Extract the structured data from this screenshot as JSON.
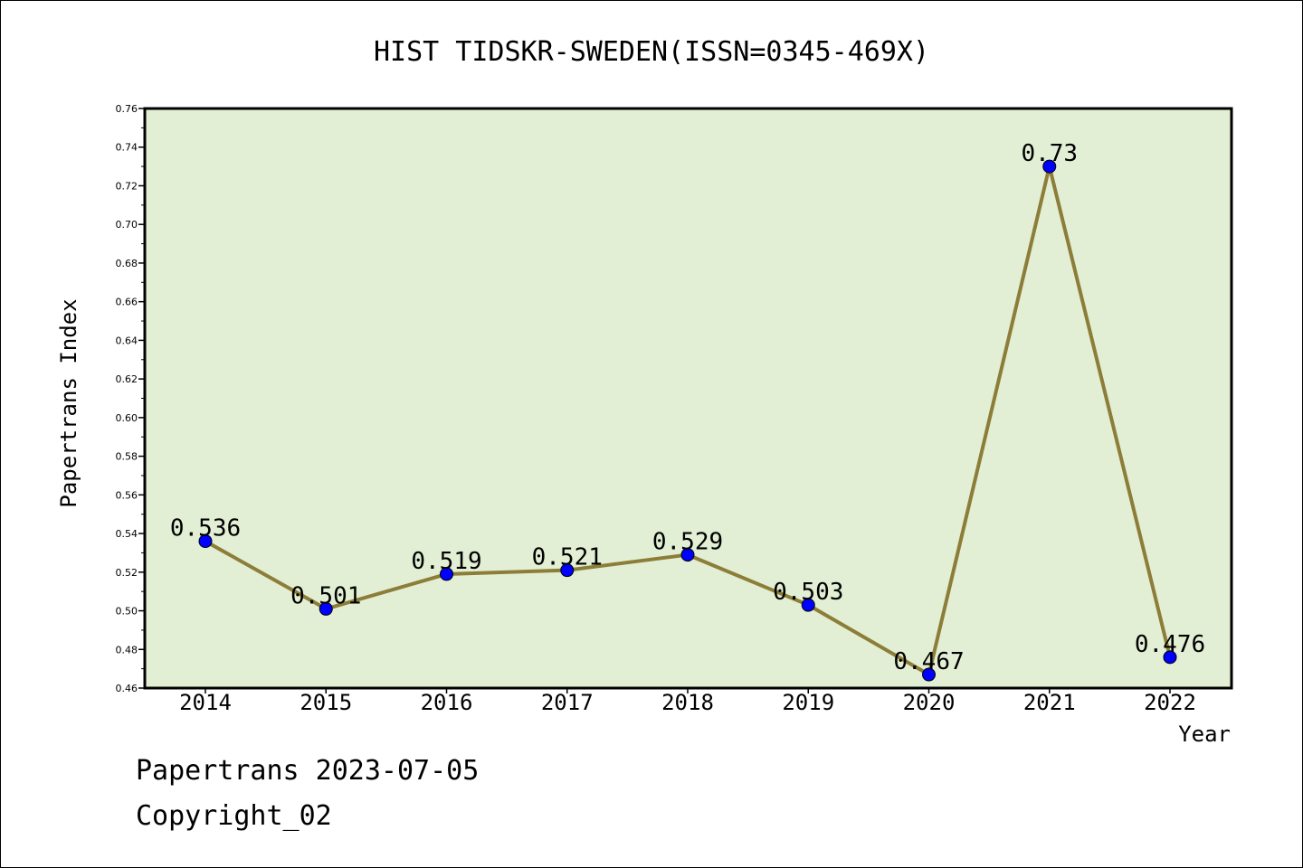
{
  "chart_data": {
    "type": "line",
    "title": "HIST TIDSKR-SWEDEN(ISSN=0345-469X)",
    "xlabel": "Year",
    "ylabel": "Papertrans Index",
    "categories": [
      "2014",
      "2015",
      "2016",
      "2017",
      "2018",
      "2019",
      "2020",
      "2021",
      "2022"
    ],
    "series": [
      {
        "values": [
          0.536,
          0.501,
          0.519,
          0.521,
          0.529,
          0.503,
          0.467,
          0.73,
          0.476
        ],
        "labels": [
          "0.536",
          "0.501",
          "0.519",
          "0.521",
          "0.529",
          "0.503",
          "0.467",
          "0.73",
          "0.476"
        ]
      }
    ],
    "ylim": [
      0.46,
      0.76
    ],
    "yticks": [
      "0.46",
      "0.48",
      "0.50",
      "0.52",
      "0.54",
      "0.56",
      "0.58",
      "0.60",
      "0.62",
      "0.64",
      "0.66",
      "0.68",
      "0.70",
      "0.72",
      "0.74",
      "0.76"
    ],
    "grid": false,
    "colors": {
      "plot_background": "#e2efd4",
      "line": "#8c7d38",
      "marker": "#0000ff"
    }
  },
  "footer": {
    "line1": "Papertrans 2023-07-05",
    "line2": "Copyright_02"
  }
}
